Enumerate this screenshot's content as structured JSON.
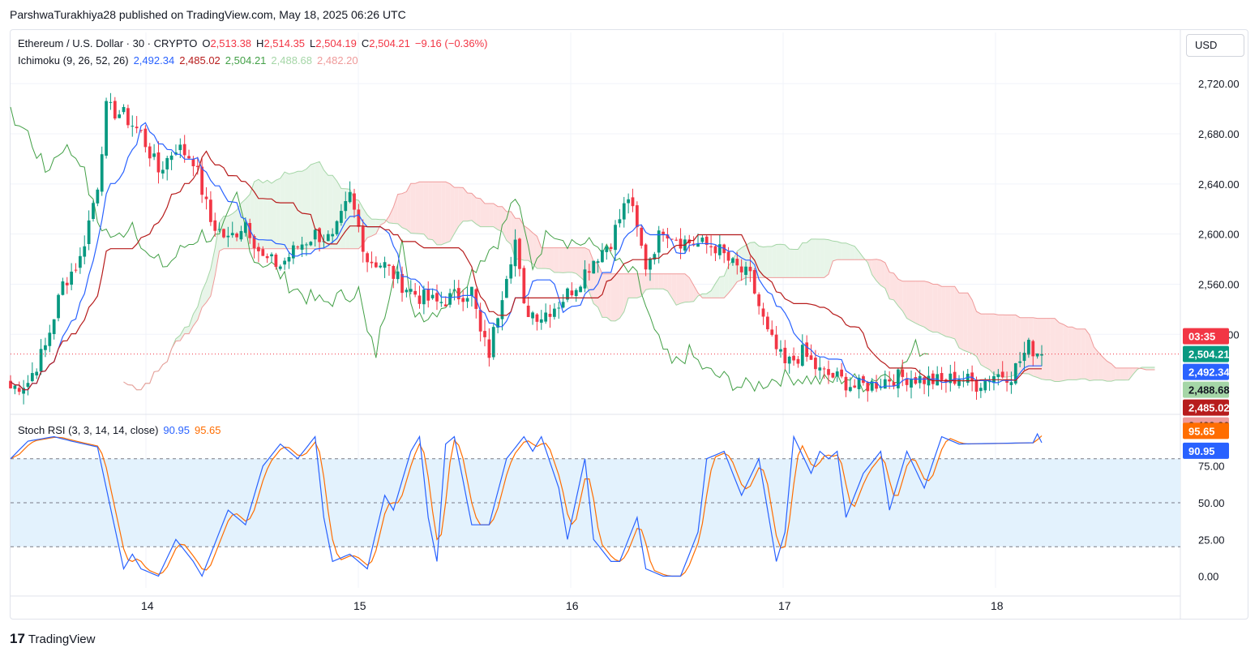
{
  "header": {
    "published": "ParshwaTurakhiya28 published on TradingView.com, May 18, 2025 06:26 UTC"
  },
  "legend": {
    "symbol": "Ethereum / U.S. Dollar · 30 · CRYPTO",
    "o_label": "O",
    "o": "2,513.38",
    "h_label": "H",
    "h": "2,514.35",
    "l_label": "L",
    "l": "2,504.19",
    "c_label": "C",
    "c": "2,504.21",
    "change": "−9.16 (−0.36%)",
    "ichimoku_label": "Ichimoku (9, 26, 52, 26)",
    "ichimoku_values": [
      "2,492.34",
      "2,485.02",
      "2,504.21",
      "2,488.68",
      "2,482.20"
    ],
    "stoch_label": "Stoch RSI (3, 3, 14, 14, close)",
    "stoch_k": "90.95",
    "stoch_d": "95.65"
  },
  "currency": "USD",
  "footer": {
    "logo": "17",
    "brand": "TradingView"
  },
  "colors": {
    "up": "#089981",
    "down": "#f23645",
    "tenkan": "#2962ff",
    "kijun": "#b71c1c",
    "lagging": "#43a047",
    "spanA": "#a5d6a7",
    "spanB": "#ef9a9a",
    "cloudUp": "#e8f5e9",
    "cloudDown": "#fde2e2",
    "stochK": "#2962ff",
    "stochD": "#ff6d00",
    "stochBand": "#e3f2fd"
  },
  "chart_data": [
    {
      "type": "candlestick",
      "ylim": [
        2460,
        2735
      ],
      "ytick_labels": [
        "2,720.00",
        "2,680.00",
        "2,640.00",
        "2,600.00",
        "2,560.00",
        "2,520.00"
      ],
      "ytick_values": [
        2720,
        2680,
        2640,
        2600,
        2560,
        2520
      ],
      "xtick_labels": [
        "14",
        "15",
        "16",
        "17",
        "18"
      ],
      "xtick_positions": [
        30,
        78,
        126,
        174,
        222
      ],
      "n_bars": 238,
      "close_anchors": [
        [
          0,
          2477
        ],
        [
          4,
          2482
        ],
        [
          8,
          2510
        ],
        [
          12,
          2560
        ],
        [
          16,
          2580
        ],
        [
          20,
          2640
        ],
        [
          22,
          2700
        ],
        [
          26,
          2695
        ],
        [
          30,
          2680
        ],
        [
          34,
          2650
        ],
        [
          38,
          2670
        ],
        [
          42,
          2660
        ],
        [
          46,
          2610
        ],
        [
          50,
          2595
        ],
        [
          54,
          2610
        ],
        [
          58,
          2580
        ],
        [
          62,
          2575
        ],
        [
          66,
          2590
        ],
        [
          70,
          2600
        ],
        [
          74,
          2595
        ],
        [
          78,
          2630
        ],
        [
          82,
          2580
        ],
        [
          86,
          2575
        ],
        [
          90,
          2560
        ],
        [
          94,
          2550
        ],
        [
          98,
          2545
        ],
        [
          102,
          2550
        ],
        [
          106,
          2555
        ],
        [
          108,
          2520
        ],
        [
          110,
          2505
        ],
        [
          114,
          2570
        ],
        [
          116,
          2595
        ],
        [
          118,
          2540
        ],
        [
          122,
          2535
        ],
        [
          126,
          2545
        ],
        [
          130,
          2560
        ],
        [
          134,
          2580
        ],
        [
          138,
          2595
        ],
        [
          142,
          2630
        ],
        [
          146,
          2575
        ],
        [
          150,
          2605
        ],
        [
          154,
          2595
        ],
        [
          158,
          2592
        ],
        [
          162,
          2590
        ],
        [
          166,
          2575
        ],
        [
          170,
          2565
        ],
        [
          174,
          2520
        ],
        [
          178,
          2495
        ],
        [
          182,
          2505
        ],
        [
          186,
          2490
        ],
        [
          190,
          2485
        ],
        [
          194,
          2478
        ],
        [
          198,
          2480
        ],
        [
          202,
          2485
        ],
        [
          206,
          2486
        ],
        [
          210,
          2484
        ],
        [
          214,
          2482
        ],
        [
          218,
          2486
        ],
        [
          222,
          2480
        ],
        [
          226,
          2488
        ],
        [
          230,
          2488
        ],
        [
          234,
          2510
        ],
        [
          237,
          2504
        ]
      ],
      "tenkan_last": 2492.34,
      "kijun_last": 2485.02,
      "lagging_last": 2504.21,
      "spanA_last": 2488.68,
      "spanB_last": 2482.2,
      "last_price": 2504.21,
      "countdown": "03:35",
      "price_labels": [
        "2,504.21",
        "2,492.34",
        "2,488.68",
        "2,485.02",
        "2,482.20"
      ]
    },
    {
      "type": "line",
      "title": "Stoch RSI (3, 3, 14, 14, close)",
      "ylim": [
        -8,
        108
      ],
      "ytick_labels": [
        "75.00",
        "50.00",
        "25.00",
        "0.00"
      ],
      "ytick_values": [
        75,
        50,
        25,
        0
      ],
      "band": [
        20,
        80
      ],
      "k_anchors": [
        [
          0,
          80
        ],
        [
          4,
          92
        ],
        [
          10,
          95
        ],
        [
          14,
          92
        ],
        [
          20,
          88
        ],
        [
          22,
          60
        ],
        [
          26,
          5
        ],
        [
          28,
          15
        ],
        [
          30,
          5
        ],
        [
          34,
          0
        ],
        [
          38,
          25
        ],
        [
          42,
          10
        ],
        [
          44,
          0
        ],
        [
          50,
          45
        ],
        [
          54,
          35
        ],
        [
          58,
          75
        ],
        [
          62,
          90
        ],
        [
          66,
          80
        ],
        [
          70,
          95
        ],
        [
          72,
          40
        ],
        [
          74,
          10
        ],
        [
          78,
          15
        ],
        [
          82,
          5
        ],
        [
          86,
          55
        ],
        [
          88,
          45
        ],
        [
          92,
          85
        ],
        [
          94,
          95
        ],
        [
          96,
          40
        ],
        [
          98,
          10
        ],
        [
          100,
          90
        ],
        [
          102,
          95
        ],
        [
          106,
          35
        ],
        [
          110,
          35
        ],
        [
          114,
          80
        ],
        [
          118,
          95
        ],
        [
          120,
          85
        ],
        [
          122,
          95
        ],
        [
          126,
          60
        ],
        [
          128,
          25
        ],
        [
          132,
          80
        ],
        [
          134,
          25
        ],
        [
          138,
          10
        ],
        [
          140,
          10
        ],
        [
          144,
          40
        ],
        [
          146,
          5
        ],
        [
          150,
          0
        ],
        [
          154,
          0
        ],
        [
          158,
          30
        ],
        [
          160,
          80
        ],
        [
          164,
          85
        ],
        [
          168,
          55
        ],
        [
          172,
          80
        ],
        [
          176,
          10
        ],
        [
          178,
          30
        ],
        [
          180,
          95
        ],
        [
          184,
          70
        ],
        [
          186,
          85
        ],
        [
          188,
          80
        ],
        [
          190,
          85
        ],
        [
          192,
          40
        ],
        [
          196,
          70
        ],
        [
          200,
          85
        ],
        [
          202,
          45
        ],
        [
          206,
          85
        ],
        [
          210,
          60
        ],
        [
          214,
          95
        ],
        [
          218,
          90
        ]
      ],
      "k_last": 90.95,
      "d_last": 95.65,
      "price_labels": [
        "95.65",
        "90.95"
      ]
    }
  ]
}
